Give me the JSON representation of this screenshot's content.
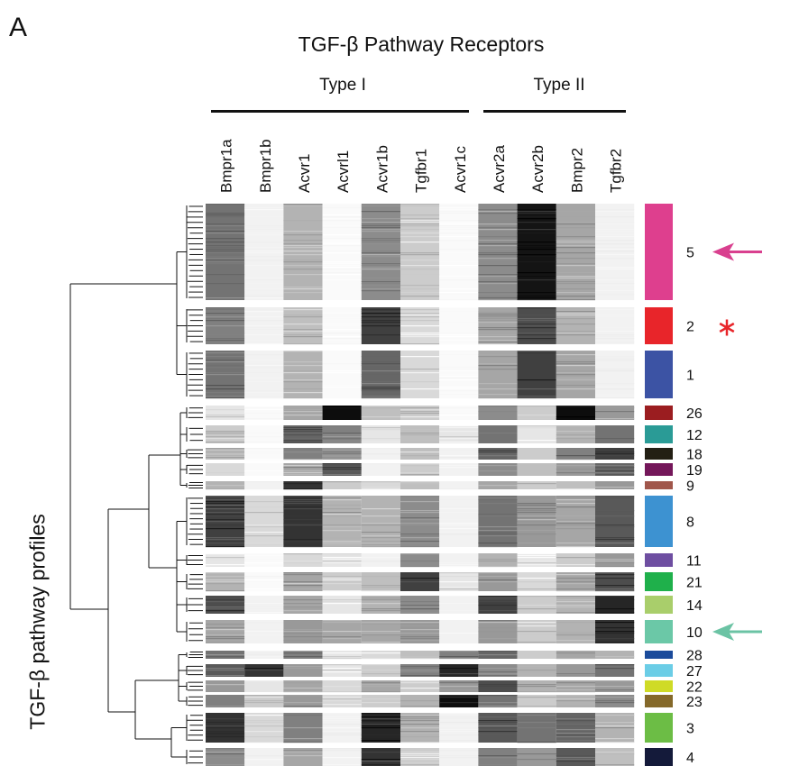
{
  "panel_letter": "A",
  "chart_data": {
    "type": "heatmap",
    "title": "TGF-β Pathway Receptors",
    "ylabel": "TGF-β pathway profiles",
    "groups": [
      {
        "name": "Type I",
        "columns": [
          "Bmpr1a",
          "Bmpr1b",
          "Acvr1",
          "Acvrl1",
          "Acvr1b",
          "Tgfbr1",
          "Acvr1c"
        ]
      },
      {
        "name": "Type II",
        "columns": [
          "Acvr2a",
          "Acvr2b",
          "Bmpr2",
          "Tgfbr2"
        ]
      }
    ],
    "columns": [
      "Bmpr1a",
      "Bmpr1b",
      "Acvr1",
      "Acvrl1",
      "Acvr1b",
      "Tgfbr1",
      "Acvr1c",
      "Acvr2a",
      "Acvr2b",
      "Bmpr2",
      "Tgfbr2"
    ],
    "value_scale": "0 = white (no expression), 1 = black (high expression)",
    "clusters": [
      {
        "id": "5",
        "color": "#de3f8e",
        "values": [
          0.55,
          0.05,
          0.3,
          0.02,
          0.45,
          0.2,
          0.02,
          0.45,
          0.92,
          0.35,
          0.05
        ],
        "highlight": "arrow",
        "highlight_color": "#d9408f"
      },
      {
        "id": "2",
        "color": "#e8252a",
        "values": [
          0.5,
          0.05,
          0.25,
          0.02,
          0.75,
          0.15,
          0.02,
          0.35,
          0.7,
          0.3,
          0.05
        ],
        "highlight": "asterisk",
        "highlight_color": "#e8252a"
      },
      {
        "id": "1",
        "color": "#3c53a4",
        "values": [
          0.55,
          0.05,
          0.3,
          0.02,
          0.6,
          0.15,
          0.02,
          0.35,
          0.75,
          0.35,
          0.05
        ]
      },
      {
        "id": "26",
        "color": "#9b1d20",
        "values": [
          0.1,
          0.02,
          0.35,
          0.95,
          0.25,
          0.2,
          0.02,
          0.45,
          0.2,
          0.95,
          0.4
        ]
      },
      {
        "id": "12",
        "color": "#2a9b96",
        "values": [
          0.2,
          0.02,
          0.6,
          0.5,
          0.1,
          0.25,
          0.1,
          0.55,
          0.1,
          0.3,
          0.55
        ]
      },
      {
        "id": "18",
        "color": "#231f14",
        "values": [
          0.25,
          0.02,
          0.5,
          0.4,
          0.05,
          0.25,
          0.05,
          0.6,
          0.2,
          0.5,
          0.75
        ]
      },
      {
        "id": "19",
        "color": "#74175a",
        "values": [
          0.15,
          0.02,
          0.35,
          0.65,
          0.05,
          0.2,
          0.05,
          0.45,
          0.25,
          0.4,
          0.6
        ]
      },
      {
        "id": "9",
        "color": "#a0564b",
        "values": [
          0.3,
          0.05,
          0.8,
          0.2,
          0.15,
          0.25,
          0.05,
          0.35,
          0.2,
          0.25,
          0.4
        ]
      },
      {
        "id": "8",
        "color": "#3d92d1",
        "values": [
          0.75,
          0.15,
          0.8,
          0.3,
          0.3,
          0.45,
          0.05,
          0.55,
          0.4,
          0.35,
          0.65
        ]
      },
      {
        "id": "11",
        "color": "#6e4ea1",
        "values": [
          0.1,
          0.02,
          0.15,
          0.1,
          0.05,
          0.45,
          0.05,
          0.3,
          0.1,
          0.2,
          0.4
        ]
      },
      {
        "id": "21",
        "color": "#1fb04b",
        "values": [
          0.3,
          0.02,
          0.35,
          0.2,
          0.25,
          0.75,
          0.1,
          0.4,
          0.15,
          0.35,
          0.7
        ]
      },
      {
        "id": "14",
        "color": "#a9ce6b",
        "values": [
          0.7,
          0.05,
          0.35,
          0.1,
          0.3,
          0.45,
          0.05,
          0.75,
          0.2,
          0.3,
          0.85
        ]
      },
      {
        "id": "10",
        "color": "#6bc8a7",
        "values": [
          0.35,
          0.05,
          0.4,
          0.35,
          0.35,
          0.4,
          0.05,
          0.4,
          0.2,
          0.3,
          0.8
        ],
        "highlight": "arrow",
        "highlight_color": "#6bc3a4"
      },
      {
        "id": "28",
        "color": "#1b4b9b",
        "values": [
          0.55,
          0.05,
          0.5,
          0.1,
          0.15,
          0.25,
          0.5,
          0.6,
          0.2,
          0.35,
          0.3
        ]
      },
      {
        "id": "27",
        "color": "#6bcde6",
        "values": [
          0.65,
          0.8,
          0.4,
          0.1,
          0.2,
          0.5,
          0.85,
          0.45,
          0.3,
          0.4,
          0.55
        ]
      },
      {
        "id": "22",
        "color": "#cfdb26",
        "values": [
          0.4,
          0.1,
          0.35,
          0.15,
          0.35,
          0.2,
          0.4,
          0.7,
          0.3,
          0.35,
          0.4
        ]
      },
      {
        "id": "23",
        "color": "#85692a",
        "values": [
          0.5,
          0.2,
          0.4,
          0.15,
          0.2,
          0.3,
          0.95,
          0.55,
          0.2,
          0.3,
          0.45
        ]
      },
      {
        "id": "3",
        "color": "#6cbd45",
        "values": [
          0.8,
          0.15,
          0.5,
          0.05,
          0.85,
          0.3,
          0.05,
          0.65,
          0.55,
          0.6,
          0.3
        ]
      },
      {
        "id": "4",
        "color": "#141a3a",
        "values": [
          0.45,
          0.05,
          0.35,
          0.05,
          0.8,
          0.2,
          0.05,
          0.5,
          0.4,
          0.65,
          0.25
        ]
      }
    ]
  }
}
